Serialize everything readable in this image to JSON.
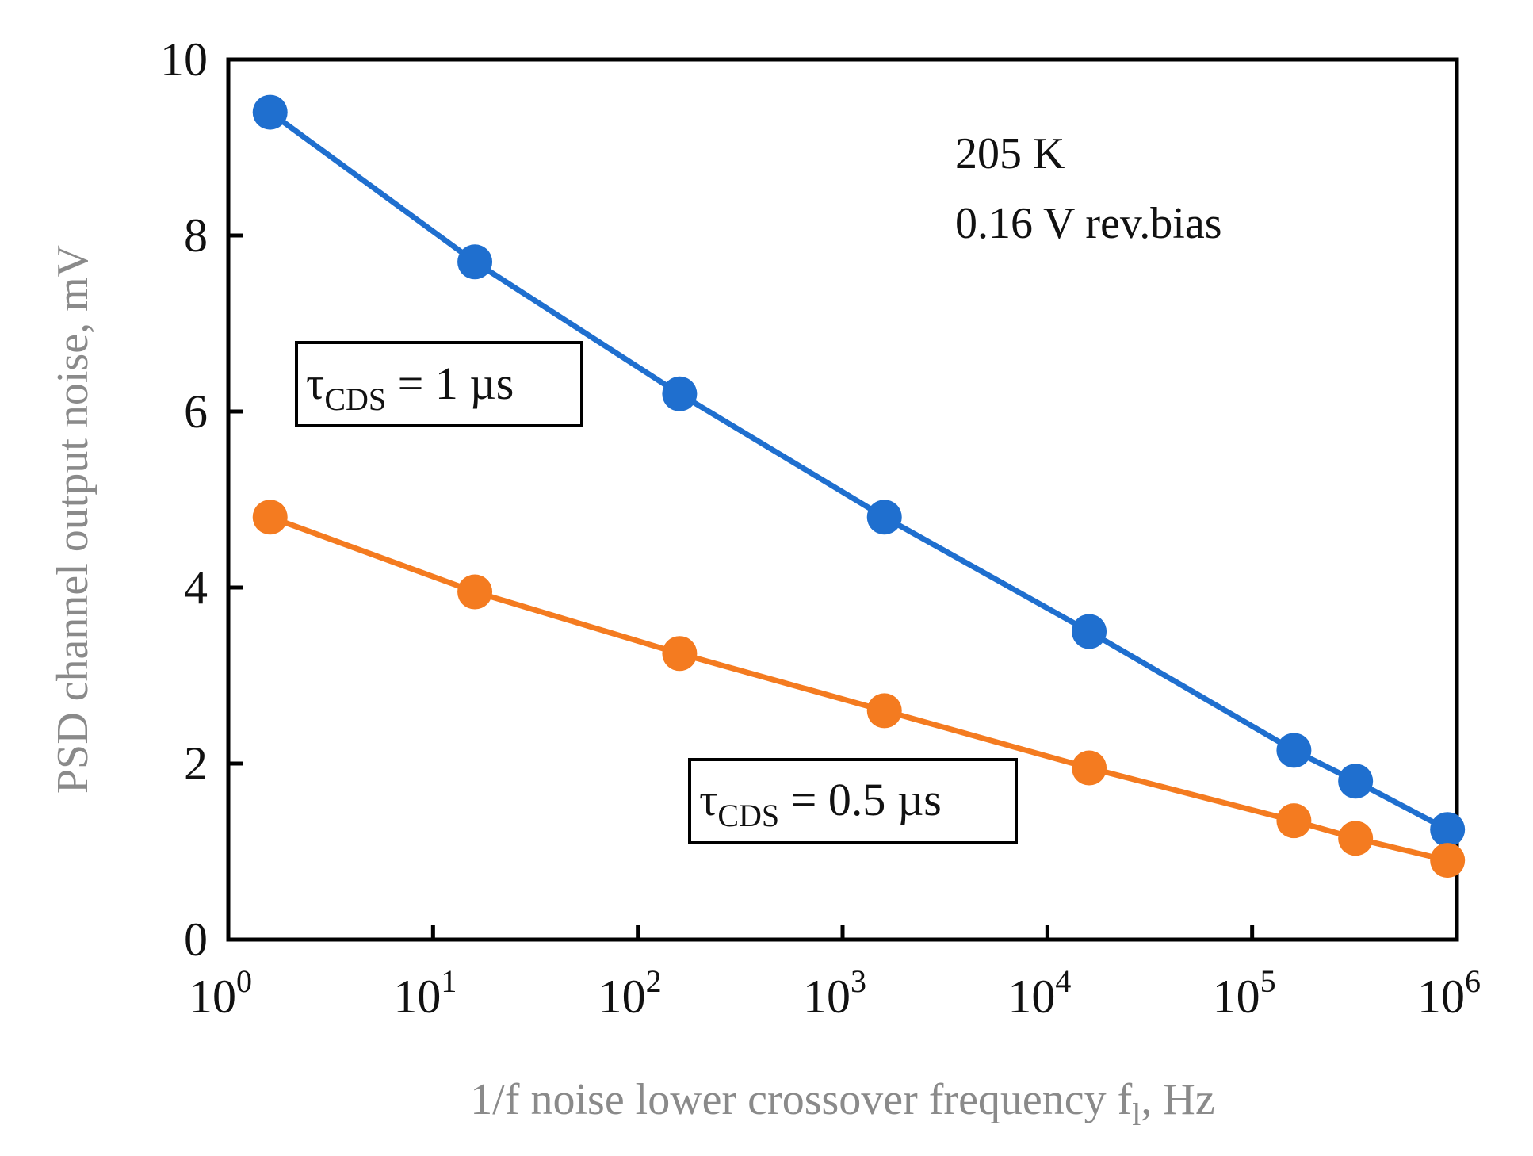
{
  "chart_data": {
    "type": "line",
    "title": "",
    "xlabel": "1/f noise lower crossover frequency f",
    "xlabel_subscript": "l",
    "xlabel_suffix": ", Hz",
    "ylabel": "PSD channel output noise, mV",
    "x_scale": "log",
    "xlim": [
      1,
      1000000
    ],
    "ylim": [
      0,
      10
    ],
    "grid": false,
    "x_ticks": [
      {
        "base": "10",
        "exp": "0"
      },
      {
        "base": "10",
        "exp": "1"
      },
      {
        "base": "10",
        "exp": "2"
      },
      {
        "base": "10",
        "exp": "3"
      },
      {
        "base": "10",
        "exp": "4"
      },
      {
        "base": "10",
        "exp": "5"
      },
      {
        "base": "10",
        "exp": "6"
      }
    ],
    "y_ticks": [
      "0",
      "2",
      "4",
      "6",
      "8",
      "10"
    ],
    "series": [
      {
        "name": "τCDS = 1 µs",
        "color": "#1f6fcf",
        "x": [
          1.6,
          16,
          160,
          1600,
          16000,
          160000,
          320000,
          900000
        ],
        "values": [
          9.4,
          7.7,
          6.2,
          4.8,
          3.5,
          2.15,
          1.8,
          1.25
        ]
      },
      {
        "name": "τCDS = 0.5 µs",
        "color": "#f47b20",
        "x": [
          1.6,
          16,
          160,
          1600,
          16000,
          160000,
          320000,
          900000
        ],
        "values": [
          4.8,
          3.95,
          3.25,
          2.6,
          1.95,
          1.35,
          1.15,
          0.9
        ]
      }
    ],
    "annotations": {
      "temperature": "205 K",
      "bias": "0.16 V rev.bias"
    },
    "legend_boxes": [
      {
        "symbol": "τ",
        "subscript": "CDS",
        "text": " = 1 µs"
      },
      {
        "symbol": "τ",
        "subscript": "CDS",
        "text": " = 0.5 µs"
      }
    ]
  }
}
